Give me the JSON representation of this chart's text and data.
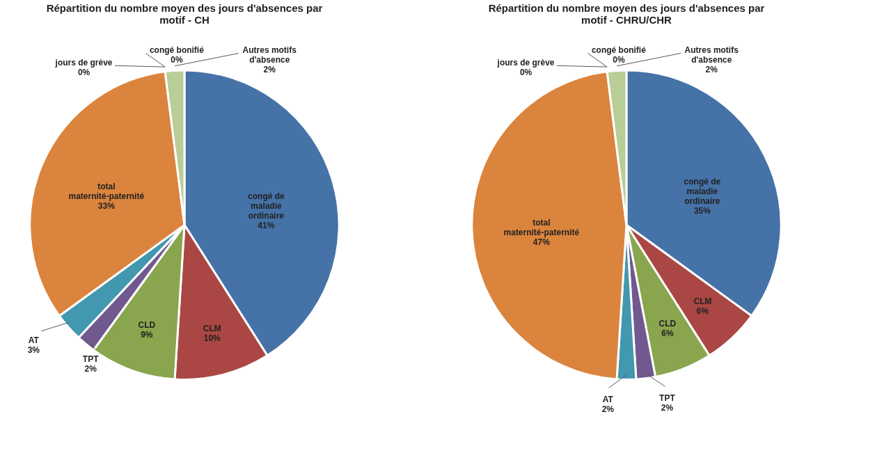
{
  "chart_data": [
    {
      "type": "pie",
      "title": "Répartition du nombre moyen des jours d'absences par motif - CH",
      "categories": [
        "congé de maladie ordinaire",
        "CLM",
        "CLD",
        "TPT",
        "AT",
        "total maternité-paternité",
        "jours de grève",
        "congé bonifié",
        "Autres motifs d'absence"
      ],
      "values": [
        41,
        10,
        9,
        2,
        3,
        33,
        0,
        0,
        2
      ],
      "value_labels": [
        "41%",
        "10%",
        "9%",
        "2%",
        "3%",
        "33%",
        "0%",
        "0%",
        "2%"
      ],
      "colors": [
        "#4572a7",
        "#aa4643",
        "#89a54e",
        "#71588f",
        "#4198af",
        "#db843d",
        "#93a9cf",
        "#a99bbd",
        "#b9cd96"
      ]
    },
    {
      "type": "pie",
      "title": "Répartition du nombre moyen des jours d'absences par motif - CHRU/CHR",
      "categories": [
        "congé de maladie ordinaire",
        "CLM",
        "CLD",
        "TPT",
        "AT",
        "total maternité-paternité",
        "jours de grève",
        "congé bonifié",
        "Autres motifs d'absence"
      ],
      "values": [
        35,
        6,
        6,
        2,
        2,
        47,
        0,
        0,
        2
      ],
      "value_labels": [
        "35%",
        "6%",
        "6%",
        "2%",
        "2%",
        "47%",
        "0%",
        "0%",
        "2%"
      ],
      "colors": [
        "#4572a7",
        "#aa4643",
        "#89a54e",
        "#71588f",
        "#4198af",
        "#db843d",
        "#93a9cf",
        "#a99bbd",
        "#b9cd96"
      ]
    }
  ]
}
